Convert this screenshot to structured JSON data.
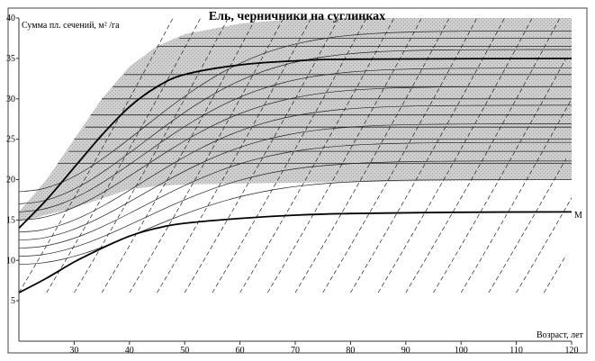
{
  "chart_data": {
    "type": "line",
    "title": "Ель, черничники на суглинках",
    "ylabel": "Сумма пл. сечений, м² /га",
    "xlabel": "Возраст, лет",
    "xlim": [
      20,
      120
    ],
    "ylim": [
      0,
      40
    ],
    "x_ticks": [
      30,
      40,
      50,
      60,
      70,
      80,
      90,
      100,
      110,
      120
    ],
    "y_ticks": [
      5,
      10,
      15,
      20,
      25,
      30,
      35,
      40
    ],
    "grid": false,
    "colors": {
      "band": "#c9c9c9",
      "line": "#000000",
      "axis": "#333333"
    },
    "band": {
      "upper": [
        {
          "x": 20,
          "y": 16
        },
        {
          "x": 25,
          "y": 20
        },
        {
          "x": 30,
          "y": 25
        },
        {
          "x": 35,
          "y": 30
        },
        {
          "x": 40,
          "y": 34
        },
        {
          "x": 45,
          "y": 36.5
        },
        {
          "x": 50,
          "y": 38
        },
        {
          "x": 60,
          "y": 39.3
        },
        {
          "x": 70,
          "y": 39.9
        },
        {
          "x": 80,
          "y": 40
        },
        {
          "x": 120,
          "y": 40
        }
      ],
      "lower": [
        {
          "x": 20,
          "y": 14.8
        },
        {
          "x": 30,
          "y": 16.5
        },
        {
          "x": 40,
          "y": 18.8
        },
        {
          "x": 45,
          "y": 19.2
        },
        {
          "x": 50,
          "y": 19.4
        },
        {
          "x": 80,
          "y": 19.7
        },
        {
          "x": 120,
          "y": 20
        }
      ]
    },
    "series": [
      {
        "label": "M",
        "values": [
          {
            "x": 20,
            "y": 6
          },
          {
            "x": 25,
            "y": 7.8
          },
          {
            "x": 30,
            "y": 9.8
          },
          {
            "x": 35,
            "y": 11.5
          },
          {
            "x": 40,
            "y": 13
          },
          {
            "x": 45,
            "y": 14
          },
          {
            "x": 50,
            "y": 14.6
          },
          {
            "x": 60,
            "y": 15.2
          },
          {
            "x": 70,
            "y": 15.6
          },
          {
            "x": 80,
            "y": 15.8
          },
          {
            "x": 100,
            "y": 15.95
          },
          {
            "x": 120,
            "y": 16
          }
        ]
      },
      {
        "values": [
          {
            "x": 20,
            "y": 14
          },
          {
            "x": 25,
            "y": 17.5
          },
          {
            "x": 30,
            "y": 21.5
          },
          {
            "x": 35,
            "y": 25.5
          },
          {
            "x": 40,
            "y": 29
          },
          {
            "x": 45,
            "y": 31.5
          },
          {
            "x": 50,
            "y": 33
          },
          {
            "x": 60,
            "y": 34.2
          },
          {
            "x": 70,
            "y": 34.7
          },
          {
            "x": 80,
            "y": 34.9
          },
          {
            "x": 120,
            "y": 35
          }
        ]
      }
    ],
    "family_levels": [
      9.5,
      10.5,
      11.5,
      12.5,
      13.5,
      15,
      16,
      17,
      18.5
    ],
    "plateau_lines": [
      37.5,
      36.5,
      33,
      31.5,
      30,
      28,
      26.5,
      25,
      23.5,
      22
    ]
  }
}
